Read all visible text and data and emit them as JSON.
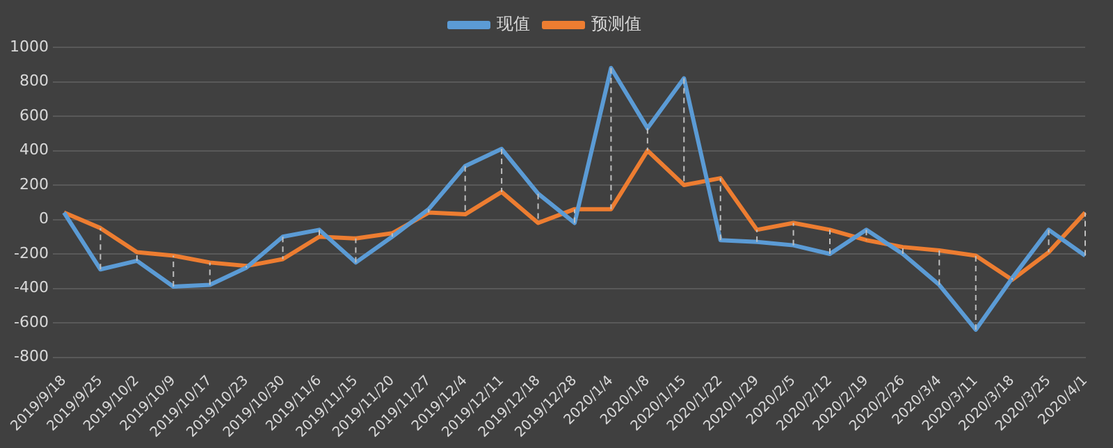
{
  "chart_data": {
    "type": "line",
    "categories": [
      "2019/9/18",
      "2019/9/25",
      "2019/10/2",
      "2019/10/9",
      "2019/10/17",
      "2019/10/23",
      "2019/10/30",
      "2019/11/6",
      "2019/11/15",
      "2019/11/20",
      "2019/11/27",
      "2019/12/4",
      "2019/12/11",
      "2019/12/18",
      "2019/12/28",
      "2020/1/4",
      "2020/1/8",
      "2020/1/15",
      "2020/1/22",
      "2020/1/29",
      "2020/2/5",
      "2020/2/12",
      "2020/2/19",
      "2020/2/26",
      "2020/3/4",
      "2020/3/11",
      "2020/3/18",
      "2020/3/25",
      "2020/4/1"
    ],
    "series": [
      {
        "name": "现值",
        "color": "#5b9bd5",
        "values": [
          40,
          -290,
          -240,
          -390,
          -380,
          -280,
          -100,
          -60,
          -250,
          -100,
          60,
          310,
          410,
          150,
          -20,
          880,
          530,
          820,
          -120,
          -130,
          -150,
          -200,
          -60,
          -200,
          -380,
          -640,
          -340,
          -60,
          -210
        ]
      },
      {
        "name": "预测值",
        "color": "#ed7d31",
        "values": [
          40,
          -50,
          -190,
          -210,
          -250,
          -270,
          -230,
          -100,
          -110,
          -80,
          40,
          30,
          160,
          -20,
          60,
          60,
          400,
          200,
          240,
          -60,
          -20,
          -60,
          -120,
          -160,
          -180,
          -210,
          -350,
          -190,
          40
        ]
      }
    ],
    "ylim": [
      -800,
      1000
    ],
    "yticks": [
      -800,
      -600,
      -400,
      -200,
      0,
      200,
      400,
      600,
      800,
      1000
    ],
    "grid": "y",
    "legend": "top",
    "marker": "none",
    "line_style": "solid"
  }
}
